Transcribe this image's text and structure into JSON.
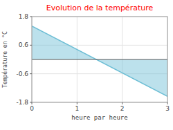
{
  "chart_data": {
    "type": "area",
    "title": "Evolution de la température",
    "xlabel": "heure par heure",
    "ylabel": "Température en °C",
    "x": [
      0,
      3
    ],
    "values": [
      1.4,
      -1.55
    ],
    "color": "#6bbdd4",
    "xlim": [
      0,
      3
    ],
    "ylim": [
      -1.8,
      1.8
    ],
    "xticks": [
      0,
      1,
      2,
      3
    ],
    "yticks": [
      -1.8,
      -0.6,
      0.6,
      1.8
    ],
    "grid": true
  }
}
